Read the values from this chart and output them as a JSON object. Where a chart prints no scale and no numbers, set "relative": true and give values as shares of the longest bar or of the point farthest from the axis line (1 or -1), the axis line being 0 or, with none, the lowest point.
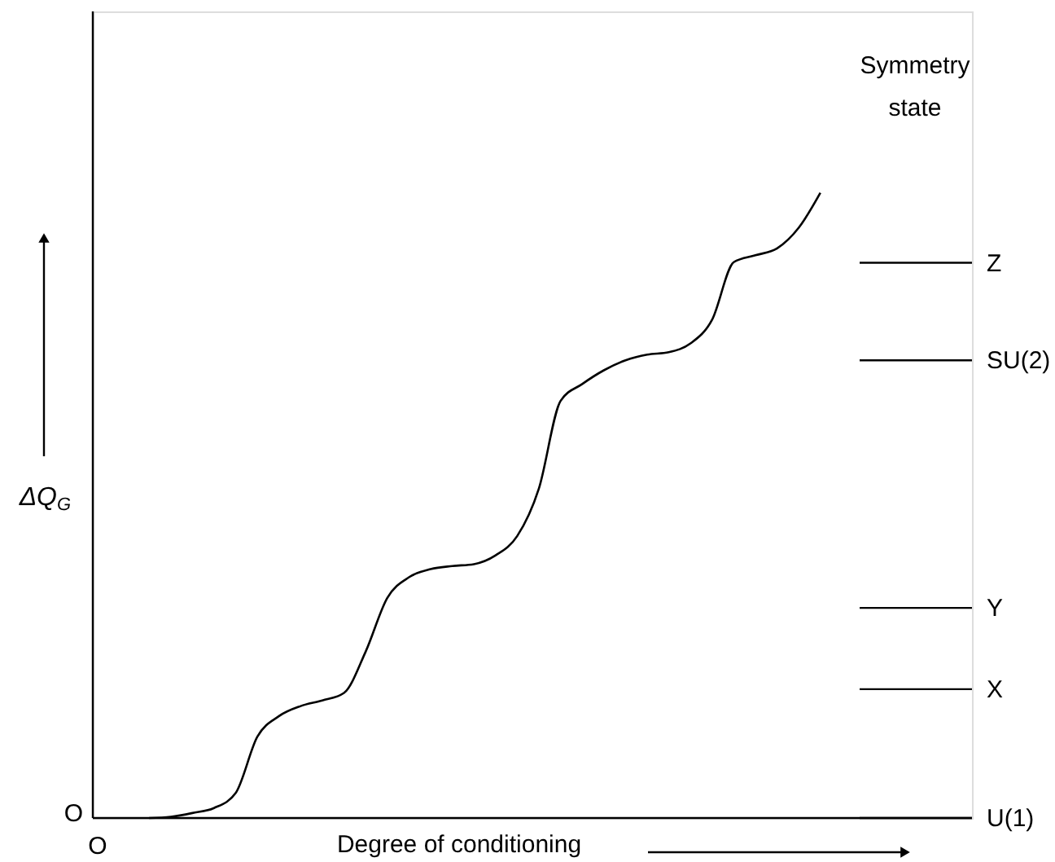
{
  "chart_data": {
    "type": "line",
    "relative": true,
    "xlabel": "Degree of conditioning",
    "ylabel": "ΔQ$_{G}$",
    "legend_title": "Symmetry state",
    "categories": [
      null,
      null,
      null,
      null,
      null,
      null,
      null,
      null,
      null,
      null,
      null,
      null,
      null,
      null,
      null,
      null,
      null,
      null,
      null,
      null,
      null,
      null,
      null,
      null,
      null,
      null,
      null,
      null,
      null,
      null,
      null,
      null
    ],
    "series": [
      {
        "color": "#000000",
        "values": [
          0,
          0.002,
          0.008,
          0.016,
          0.04,
          0.13,
          0.163,
          0.179,
          0.188,
          0.2,
          0.266,
          0.352,
          0.385,
          0.398,
          0.403,
          0.406,
          0.42,
          0.451,
          0.527,
          0.667,
          0.694,
          0.716,
          0.732,
          0.741,
          0.745,
          0.759,
          0.797,
          0.889,
          0.9,
          0.911,
          0.944,
          1.0
        ]
      }
    ],
    "ref_lines": [
      {
        "axis": "y",
        "value": 0.888,
        "label": "Z"
      },
      {
        "axis": "y",
        "value": 0.732,
        "label": "SU(2)"
      },
      {
        "axis": "y",
        "value": 0.336,
        "label": "Y"
      },
      {
        "axis": "y",
        "value": 0.206,
        "label": "X"
      },
      {
        "axis": "y",
        "value": 0,
        "label": "U(1)"
      }
    ],
    "annotations": [
      "O",
      "O"
    ]
  }
}
